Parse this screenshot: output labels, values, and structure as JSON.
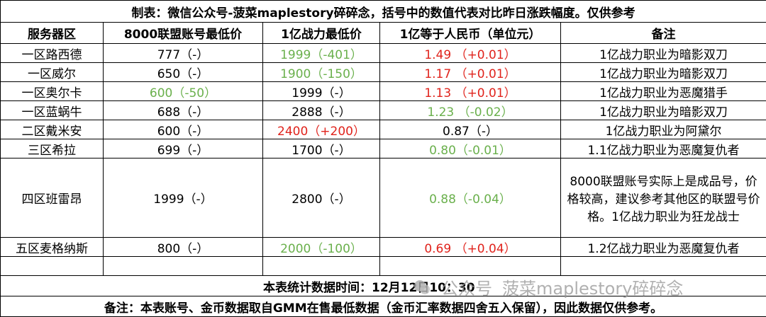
{
  "title": "制表：微信公众号-菠菜maplestory碎碎念，括号中的数值代表对比昨日涨跌幅度。仅供参考",
  "table": {
    "headers": [
      "服务器区",
      "8000联盟账号最低价",
      "1亿战力最低价",
      "1亿等于人民币（单位元）",
      "备注"
    ],
    "rows": [
      [
        "一区路西德",
        "777（-）",
        {
          "text": "1999（-401）",
          "color": "#6ab04c"
        },
        {
          "text": "1.49 （+0.01）",
          "color": "#e0231c"
        },
        "1亿战力职业为暗影双刀"
      ],
      [
        "一区威尔",
        "650（-）",
        {
          "text": "1900（-150）",
          "color": "#6ab04c"
        },
        {
          "text": "1.17 （+0.01）",
          "color": "#e0231c"
        },
        "1亿战力职业为暗影双刀"
      ],
      [
        "一区奥尔卡",
        {
          "text": "600（-50）",
          "color": "#6ab04c"
        },
        "1999（-）",
        {
          "text": "1.13 （+0.01）",
          "color": "#e0231c"
        },
        "1亿战力职业为恶魔猎手"
      ],
      [
        "一区蓝蜗牛",
        "688（-）",
        "2888（-）",
        {
          "text": "1.23 （-0.02）",
          "color": "#6ab04c"
        },
        "1亿战力职业为暗影双刀"
      ],
      [
        "二区戴米安",
        "600（-）",
        {
          "text": "2400（+200）",
          "color": "#e0231c"
        },
        "0.87（-）",
        "1亿战力职业为阿黛尔"
      ],
      [
        "三区希拉",
        "699（-）",
        "1700（-）",
        {
          "text": "0.80（-0.01）",
          "color": "#6ab04c"
        },
        "1.1亿战力职业为恶魔复仇者"
      ],
      [
        "四区班雷昂",
        "1999（-）",
        "2800（-）",
        {
          "text": "0.88（-0.04）",
          "color": "#6ab04c"
        },
        "8000联盟账号实际上是成品号，价格较高，建议参考其他区的联盟号价格。1亿战力职业为狂龙战士"
      ],
      [
        "五区麦格纳斯",
        "800（-）",
        {
          "text": "2000（-100）",
          "color": "#6ab04c"
        },
        {
          "text": "0.69 （+0.04）",
          "color": "#e0231c"
        },
        "1.2亿战力职业为恶魔复仇者"
      ]
    ]
  },
  "stats_time": "本表统计数据时间：12月12日10：30",
  "footer": "备注：本表账号、金币数据取自GMM在售最低数据（金币汇率数据四舍五入保留），因此数据仅供参考。",
  "watermark": {
    "label": "公众号",
    "name": "菠菜maplestory碎碎念"
  }
}
